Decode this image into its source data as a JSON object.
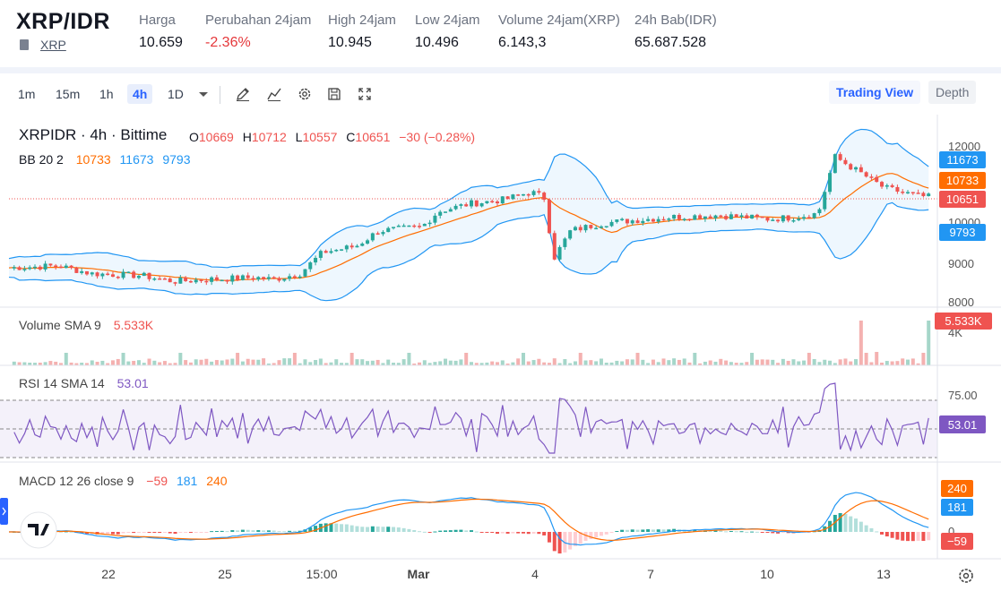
{
  "header": {
    "pair": "XRP/IDR",
    "asset_link": "XRP",
    "stats": [
      {
        "label": "Harga",
        "value": "10.659",
        "negative": false
      },
      {
        "label": "Perubahan 24jam",
        "value": "-2.36%",
        "negative": true
      },
      {
        "label": "High 24jam",
        "value": "10.945",
        "negative": false
      },
      {
        "label": "Low 24jam",
        "value": "10.496",
        "negative": false
      },
      {
        "label": "Volume 24jam(XRP)",
        "value": "6.143,3",
        "negative": false
      },
      {
        "label": "24h Bab(IDR)",
        "value": "65.687.528",
        "negative": false
      }
    ]
  },
  "toolbar": {
    "timeframes": [
      "1m",
      "15m",
      "1h",
      "4h",
      "1D"
    ],
    "active_timeframe": "4h",
    "icons": [
      "chevron-down-icon",
      "draw-icon",
      "indicator-icon",
      "settings-icon",
      "save-icon",
      "fullscreen-icon"
    ],
    "trading_view_label": "Trading View",
    "depth_label": "Depth"
  },
  "chart": {
    "symbol_line": "XRPIDR · 4h · Bittime",
    "ohlc": {
      "o_label": "O",
      "o": "10669",
      "h_label": "H",
      "h": "10712",
      "l_label": "L",
      "l": "10557",
      "c_label": "C",
      "c": "10651",
      "change": "−30 (−0.28%)"
    },
    "bb_label": "BB 20 2",
    "bb_values": [
      "10733",
      "11673",
      "9793"
    ],
    "price_ticks": [
      "12000",
      "10000",
      "9000",
      "8000"
    ],
    "price_badges": {
      "upper": "11673",
      "basis": "10733",
      "last": "10651",
      "lower": "9793"
    },
    "volume_label": "Volume SMA 9",
    "volume_value": "5.533K",
    "volume_tick": "4K",
    "volume_badge": "5.533K",
    "rsi_label": "RSI 14 SMA 14",
    "rsi_value": "53.01",
    "rsi_tick": "75.00",
    "rsi_badge": "53.01",
    "macd_label": "MACD 12 26 close 9",
    "macd_values": [
      "−59",
      "181",
      "240"
    ],
    "macd_badges": {
      "signal": "240",
      "macd": "181",
      "hist": "−59"
    },
    "macd_zero_tick": "0",
    "x_labels": [
      "22",
      "25",
      "15:00",
      "Mar",
      "4",
      "7",
      "10",
      "13"
    ],
    "colors": {
      "up": "#26a69a",
      "down": "#ef5350",
      "bb_basis": "#ff6d00",
      "bb_band": "#2196f3",
      "rsi": "#7e57c2",
      "macd": "#2196f3",
      "signal": "#ff6d00",
      "accent": "#2962ff"
    }
  }
}
